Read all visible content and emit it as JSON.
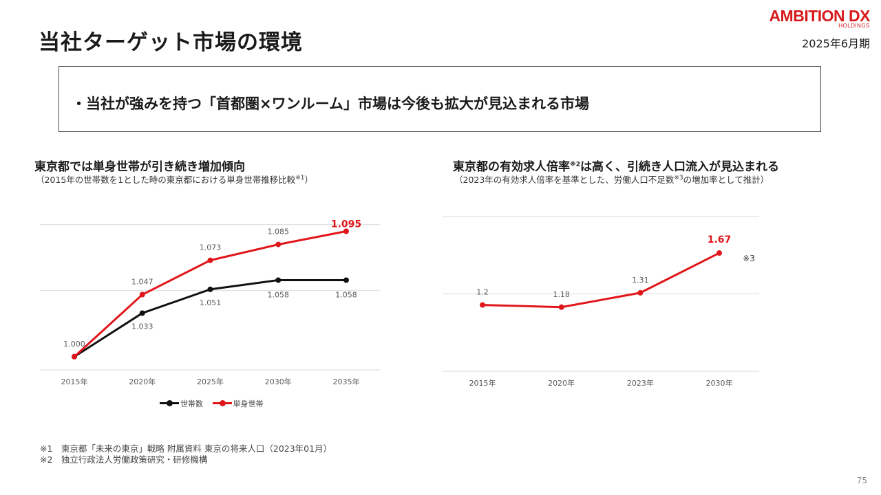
{
  "header": {
    "title": "当社ターゲット市場の環境",
    "logo_main": "AMBITION DX",
    "logo_sub": "HOLDINGS",
    "period": "2025年6月期"
  },
  "headline": "・当社が強みを持つ「首都圏×ワンルーム」市場は今後も拡大が見込まれる市場",
  "left_panel": {
    "title": "東京都では単身世帯が引き続き増加傾向",
    "subtitle_main": "（2015年の世帯数を1とした時の東京都における単身世帯推移比較",
    "subtitle_note": "※1",
    "subtitle_end": "）"
  },
  "right_panel": {
    "title_main": "東京都の有効求人倍率",
    "title_note": "※2",
    "title_end": "は高く、引続き人口流入が見込まれる",
    "subtitle_main": "（2023年の有効求人倍率を基準とした、労働人口不足数",
    "subtitle_note": "※3",
    "subtitle_end": "の増加率として推計）"
  },
  "chart_data": [
    {
      "type": "line",
      "categories": [
        "2015年",
        "2020年",
        "2025年",
        "2030年",
        "2035年"
      ],
      "series": [
        {
          "name": "世帯数",
          "values": [
            1.0,
            1.033,
            1.051,
            1.058,
            1.058
          ],
          "labels": [
            "1.000",
            "1.033",
            "1.051",
            "1.058",
            "1.058"
          ],
          "color": "#111111"
        },
        {
          "name": "単身世帯",
          "values": [
            1.0,
            1.047,
            1.073,
            1.085,
            1.095
          ],
          "labels": [
            "",
            "1.047",
            "1.073",
            "1.085",
            "1.095"
          ],
          "color": "#e0161b",
          "highlight_last": true
        }
      ],
      "ylim": [
        0.99,
        1.115
      ],
      "grid": true,
      "legend": "bottom"
    },
    {
      "type": "line",
      "categories": [
        "2015年",
        "2020年",
        "2023年",
        "2030年"
      ],
      "series": [
        {
          "values": [
            1.2,
            1.18,
            1.31,
            1.67
          ],
          "labels": [
            "1.2",
            "1.18",
            "1.31",
            "1.67"
          ],
          "color": "#e0161b",
          "highlight_last": true
        }
      ],
      "ylim": [
        0.6,
        2.0
      ],
      "grid": true,
      "annotation": "※3"
    }
  ],
  "footnotes": [
    "※1　東京都「未来の東京」戦略 附属資料 東京の将来人口（2023年01月）",
    "※2　独立行政法人労働政策研究・研修機構"
  ],
  "page_number": "75"
}
